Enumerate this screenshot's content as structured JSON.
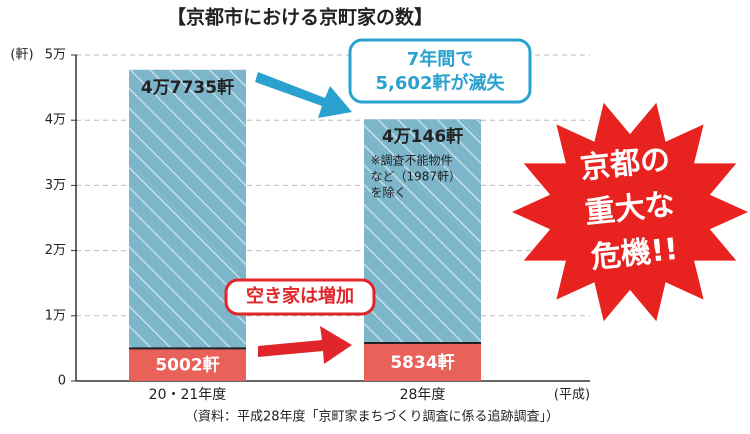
{
  "chart_data": {
    "type": "bar",
    "title": "【京都市における京町家の数】",
    "y_unit": "(軒)",
    "x_unit": "(平成)",
    "categories": [
      "20・21年度",
      "28年度"
    ],
    "series": [
      {
        "color": "#7db6cb",
        "values": [
          47735,
          40146
        ],
        "value_labels": [
          "4万7735軒",
          "4万146軒"
        ]
      },
      {
        "color": "#e8625a",
        "values": [
          5002,
          5834
        ],
        "value_labels": [
          "5002軒",
          "5834軒"
        ]
      }
    ],
    "ylim": [
      0,
      50000
    ],
    "yticks": [
      0,
      {
        "value": 10000,
        "label": "1万"
      },
      {
        "value": 20000,
        "label": "2万"
      },
      {
        "value": 30000,
        "label": "3万"
      },
      {
        "value": 40000,
        "label": "4万"
      },
      {
        "value": 50000,
        "label": "5万"
      }
    ],
    "grid": true,
    "annotations": {
      "loss": [
        "7年間で",
        "5,602軒が滅失"
      ],
      "note": [
        "※調査不能物件",
        "など（1987軒）",
        "を除く"
      ],
      "vacant": "空き家は増加",
      "crisis": [
        "京都の",
        "重大な",
        "危機!!"
      ]
    },
    "source": "（資料：平成28年度「京町家まちづくり調査に係る追跡調査」）"
  }
}
